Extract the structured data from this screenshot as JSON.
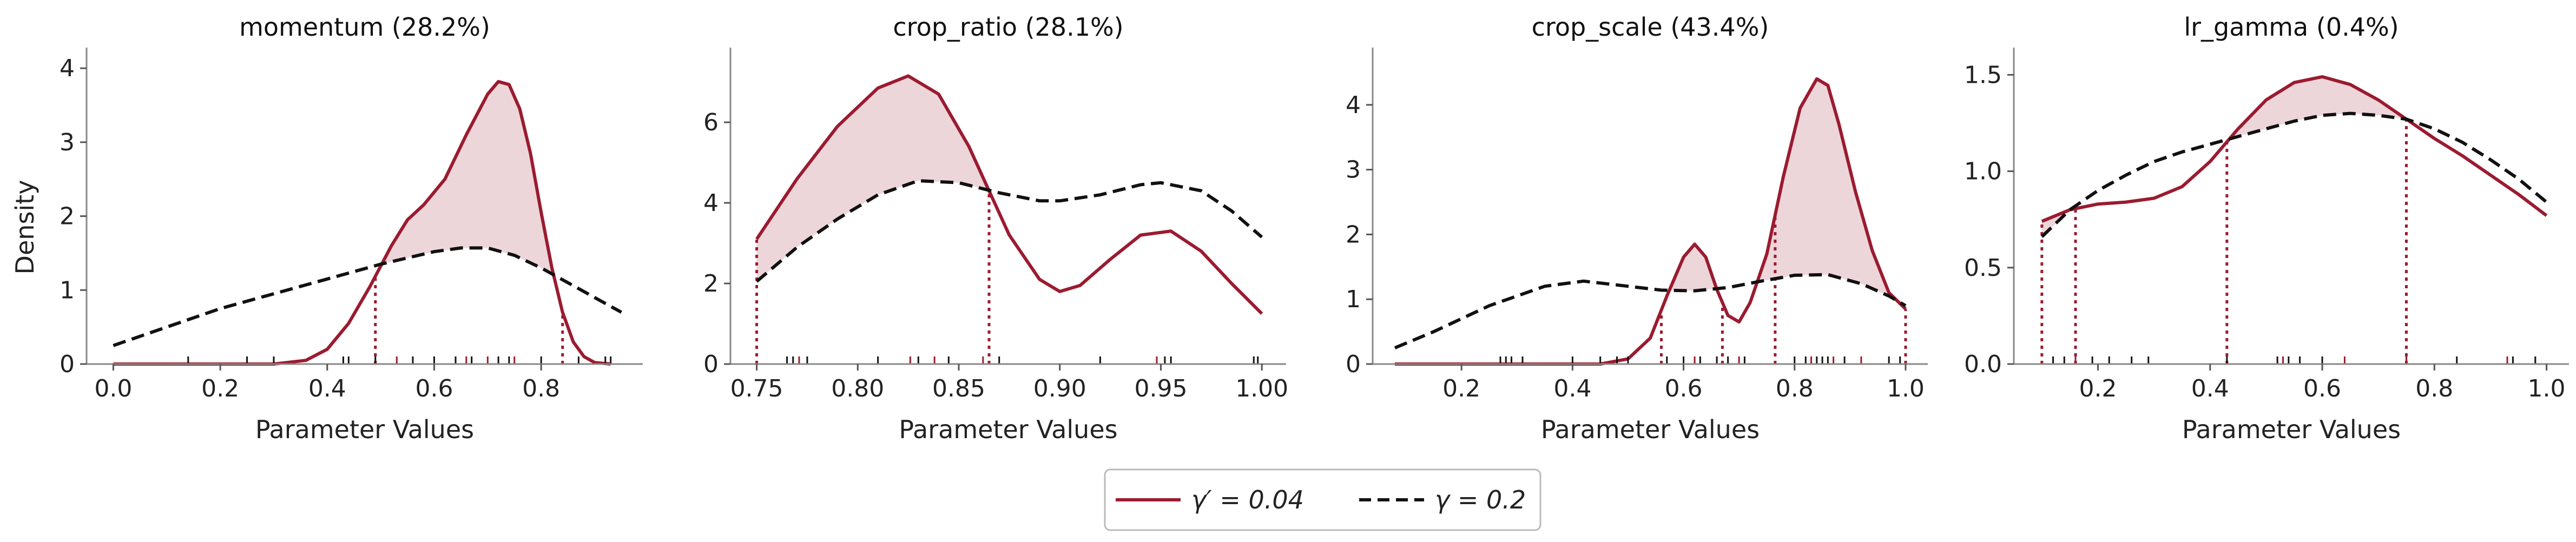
{
  "figure": {
    "legend": [
      {
        "label": "γ′ = 0.04",
        "color": "#9b1b30",
        "dash": "solid"
      },
      {
        "label": "γ = 0.2",
        "color": "#111111",
        "dash": "dashed"
      }
    ],
    "y_axis_label": "Density",
    "x_axis_label": "Parameter Values"
  },
  "chart_data": [
    {
      "type": "line",
      "title": "momentum (28.2%)",
      "xlabel": "Parameter Values",
      "ylabel": "Density",
      "xlim": [
        -0.05,
        0.99
      ],
      "ylim": [
        0,
        4.25
      ],
      "xticks": [
        0.0,
        0.2,
        0.4,
        0.6,
        0.8
      ],
      "xtick_labels": [
        "0.0",
        "0.2",
        "0.4",
        "0.6",
        "0.8"
      ],
      "yticks": [
        0,
        1,
        2,
        3,
        4
      ],
      "ytick_labels": [
        "0",
        "1",
        "2",
        "3",
        "4"
      ],
      "series": [
        {
          "name": "γ′ = 0.04",
          "color": "#9b1b30",
          "dash": "solid",
          "x": [
            0.0,
            0.3,
            0.36,
            0.4,
            0.44,
            0.48,
            0.52,
            0.55,
            0.58,
            0.62,
            0.66,
            0.7,
            0.72,
            0.74,
            0.76,
            0.78,
            0.8,
            0.82,
            0.84,
            0.86,
            0.88,
            0.9,
            0.93
          ],
          "y": [
            0.0,
            0.0,
            0.05,
            0.2,
            0.55,
            1.05,
            1.6,
            1.95,
            2.15,
            2.5,
            3.1,
            3.65,
            3.82,
            3.78,
            3.45,
            2.85,
            2.05,
            1.3,
            0.7,
            0.3,
            0.1,
            0.02,
            0.0
          ]
        },
        {
          "name": "γ = 0.2",
          "color": "#111111",
          "dash": "dashed",
          "x": [
            0.0,
            0.1,
            0.2,
            0.3,
            0.4,
            0.5,
            0.6,
            0.65,
            0.7,
            0.75,
            0.8,
            0.85,
            0.9,
            0.95
          ],
          "y": [
            0.25,
            0.5,
            0.75,
            0.95,
            1.15,
            1.35,
            1.52,
            1.57,
            1.57,
            1.47,
            1.3,
            1.1,
            0.9,
            0.7
          ]
        }
      ],
      "crossings": [
        0.49,
        0.84
      ],
      "rug_gamma_prime": [
        0.53,
        0.66,
        0.7,
        0.75
      ],
      "rug_gamma": [
        0.14,
        0.25,
        0.3,
        0.43,
        0.44,
        0.49,
        0.56,
        0.6,
        0.64,
        0.67,
        0.72,
        0.74,
        0.8,
        0.87,
        0.92,
        0.93
      ]
    },
    {
      "type": "line",
      "title": "crop_ratio (28.1%)",
      "xlabel": "Parameter Values",
      "ylabel": "",
      "xlim": [
        0.737,
        1.012
      ],
      "ylim": [
        0,
        7.8
      ],
      "xticks": [
        0.75,
        0.8,
        0.85,
        0.9,
        0.95,
        1.0
      ],
      "xtick_labels": [
        "0.75",
        "0.80",
        "0.85",
        "0.90",
        "0.95",
        "1.00"
      ],
      "yticks": [
        0,
        2,
        4,
        6
      ],
      "ytick_labels": [
        "0",
        "2",
        "4",
        "6"
      ],
      "series": [
        {
          "name": "γ′ = 0.04",
          "color": "#9b1b30",
          "dash": "solid",
          "x": [
            0.75,
            0.77,
            0.79,
            0.81,
            0.825,
            0.84,
            0.855,
            0.865,
            0.875,
            0.89,
            0.9,
            0.91,
            0.925,
            0.94,
            0.955,
            0.97,
            0.985,
            1.0
          ],
          "y": [
            3.1,
            4.6,
            5.9,
            6.85,
            7.15,
            6.7,
            5.4,
            4.3,
            3.2,
            2.1,
            1.8,
            1.95,
            2.6,
            3.2,
            3.3,
            2.8,
            2.0,
            1.25
          ]
        },
        {
          "name": "γ = 0.2",
          "color": "#111111",
          "dash": "dashed",
          "x": [
            0.75,
            0.77,
            0.79,
            0.81,
            0.83,
            0.85,
            0.87,
            0.89,
            0.9,
            0.92,
            0.94,
            0.95,
            0.97,
            0.985,
            1.0
          ],
          "y": [
            2.05,
            2.9,
            3.6,
            4.2,
            4.55,
            4.5,
            4.25,
            4.05,
            4.05,
            4.2,
            4.45,
            4.5,
            4.3,
            3.8,
            3.15
          ]
        }
      ],
      "crossings": [
        0.75,
        0.865
      ],
      "rug_gamma_prime": [
        0.771,
        0.826,
        0.838,
        0.862,
        0.948
      ],
      "rug_gamma": [
        0.765,
        0.768,
        0.775,
        0.81,
        0.83,
        0.845,
        0.87,
        0.92,
        0.952,
        0.955,
        0.996,
        0.998
      ]
    },
    {
      "type": "line",
      "title": "crop_scale (43.4%)",
      "xlabel": "Parameter Values",
      "ylabel": "",
      "xlim": [
        0.04,
        1.04
      ],
      "ylim": [
        0,
        4.85
      ],
      "xticks": [
        0.2,
        0.4,
        0.6,
        0.8,
        1.0
      ],
      "xtick_labels": [
        "0.2",
        "0.4",
        "0.6",
        "0.8",
        "1.0"
      ],
      "yticks": [
        0,
        1,
        2,
        3,
        4
      ],
      "ytick_labels": [
        "0",
        "1",
        "2",
        "3",
        "4"
      ],
      "series": [
        {
          "name": "γ′ = 0.04",
          "color": "#9b1b30",
          "dash": "solid",
          "x": [
            0.08,
            0.45,
            0.5,
            0.54,
            0.57,
            0.6,
            0.62,
            0.64,
            0.66,
            0.68,
            0.7,
            0.72,
            0.75,
            0.78,
            0.81,
            0.84,
            0.86,
            0.88,
            0.91,
            0.94,
            0.97,
            1.0
          ],
          "y": [
            0.0,
            0.0,
            0.08,
            0.4,
            1.05,
            1.65,
            1.85,
            1.65,
            1.15,
            0.75,
            0.65,
            0.95,
            1.7,
            2.9,
            3.95,
            4.4,
            4.3,
            3.7,
            2.65,
            1.75,
            1.1,
            0.85
          ]
        },
        {
          "name": "γ = 0.2",
          "color": "#111111",
          "dash": "dashed",
          "x": [
            0.08,
            0.15,
            0.25,
            0.35,
            0.42,
            0.5,
            0.56,
            0.62,
            0.68,
            0.74,
            0.8,
            0.86,
            0.92,
            0.97,
            1.0
          ],
          "y": [
            0.25,
            0.5,
            0.9,
            1.2,
            1.28,
            1.2,
            1.14,
            1.13,
            1.18,
            1.28,
            1.37,
            1.38,
            1.24,
            1.05,
            0.9
          ]
        }
      ],
      "crossings": [
        0.56,
        0.67,
        0.765,
        1.0
      ],
      "rug_gamma_prime": [
        0.62,
        0.7,
        0.83,
        0.87,
        0.92
      ],
      "rug_gamma": [
        0.27,
        0.28,
        0.29,
        0.31,
        0.4,
        0.45,
        0.48,
        0.5,
        0.57,
        0.6,
        0.63,
        0.66,
        0.68,
        0.71,
        0.8,
        0.82,
        0.84,
        0.85,
        0.86,
        0.89,
        0.97,
        0.99
      ]
    },
    {
      "type": "line",
      "title": "lr_gamma (0.4%)",
      "xlabel": "Parameter Values",
      "ylabel": "",
      "xlim": [
        0.05,
        1.04
      ],
      "ylim": [
        0,
        1.63
      ],
      "xticks": [
        0.2,
        0.4,
        0.6,
        0.8,
        1.0
      ],
      "xtick_labels": [
        "0.2",
        "0.4",
        "0.6",
        "0.8",
        "1.0"
      ],
      "yticks": [
        0.0,
        0.5,
        1.0,
        1.5
      ],
      "ytick_labels": [
        "0.0",
        "0.5",
        "1.0",
        "1.5"
      ],
      "series": [
        {
          "name": "γ′ = 0.04",
          "color": "#9b1b30",
          "dash": "solid",
          "x": [
            0.1,
            0.15,
            0.2,
            0.25,
            0.3,
            0.35,
            0.4,
            0.45,
            0.5,
            0.55,
            0.6,
            0.65,
            0.7,
            0.75,
            0.8,
            0.85,
            0.9,
            0.95,
            1.0
          ],
          "y": [
            0.74,
            0.8,
            0.83,
            0.84,
            0.86,
            0.92,
            1.05,
            1.22,
            1.37,
            1.46,
            1.49,
            1.45,
            1.37,
            1.27,
            1.17,
            1.08,
            0.98,
            0.88,
            0.77
          ]
        },
        {
          "name": "γ = 0.2",
          "color": "#111111",
          "dash": "dashed",
          "x": [
            0.1,
            0.15,
            0.2,
            0.25,
            0.3,
            0.35,
            0.4,
            0.45,
            0.5,
            0.55,
            0.6,
            0.65,
            0.7,
            0.75,
            0.8,
            0.85,
            0.9,
            0.95,
            1.0
          ],
          "y": [
            0.66,
            0.8,
            0.9,
            0.98,
            1.05,
            1.1,
            1.14,
            1.18,
            1.22,
            1.26,
            1.29,
            1.3,
            1.29,
            1.27,
            1.22,
            1.15,
            1.06,
            0.96,
            0.84
          ]
        }
      ],
      "crossings": [
        0.1,
        0.16,
        0.43,
        0.75
      ],
      "rug_gamma_prime": [
        0.16,
        0.53,
        0.64,
        0.75,
        0.93
      ],
      "rug_gamma": [
        0.12,
        0.14,
        0.19,
        0.22,
        0.26,
        0.29,
        0.43,
        0.52,
        0.54,
        0.56,
        0.6,
        0.75,
        0.84,
        0.94,
        0.98
      ]
    }
  ]
}
